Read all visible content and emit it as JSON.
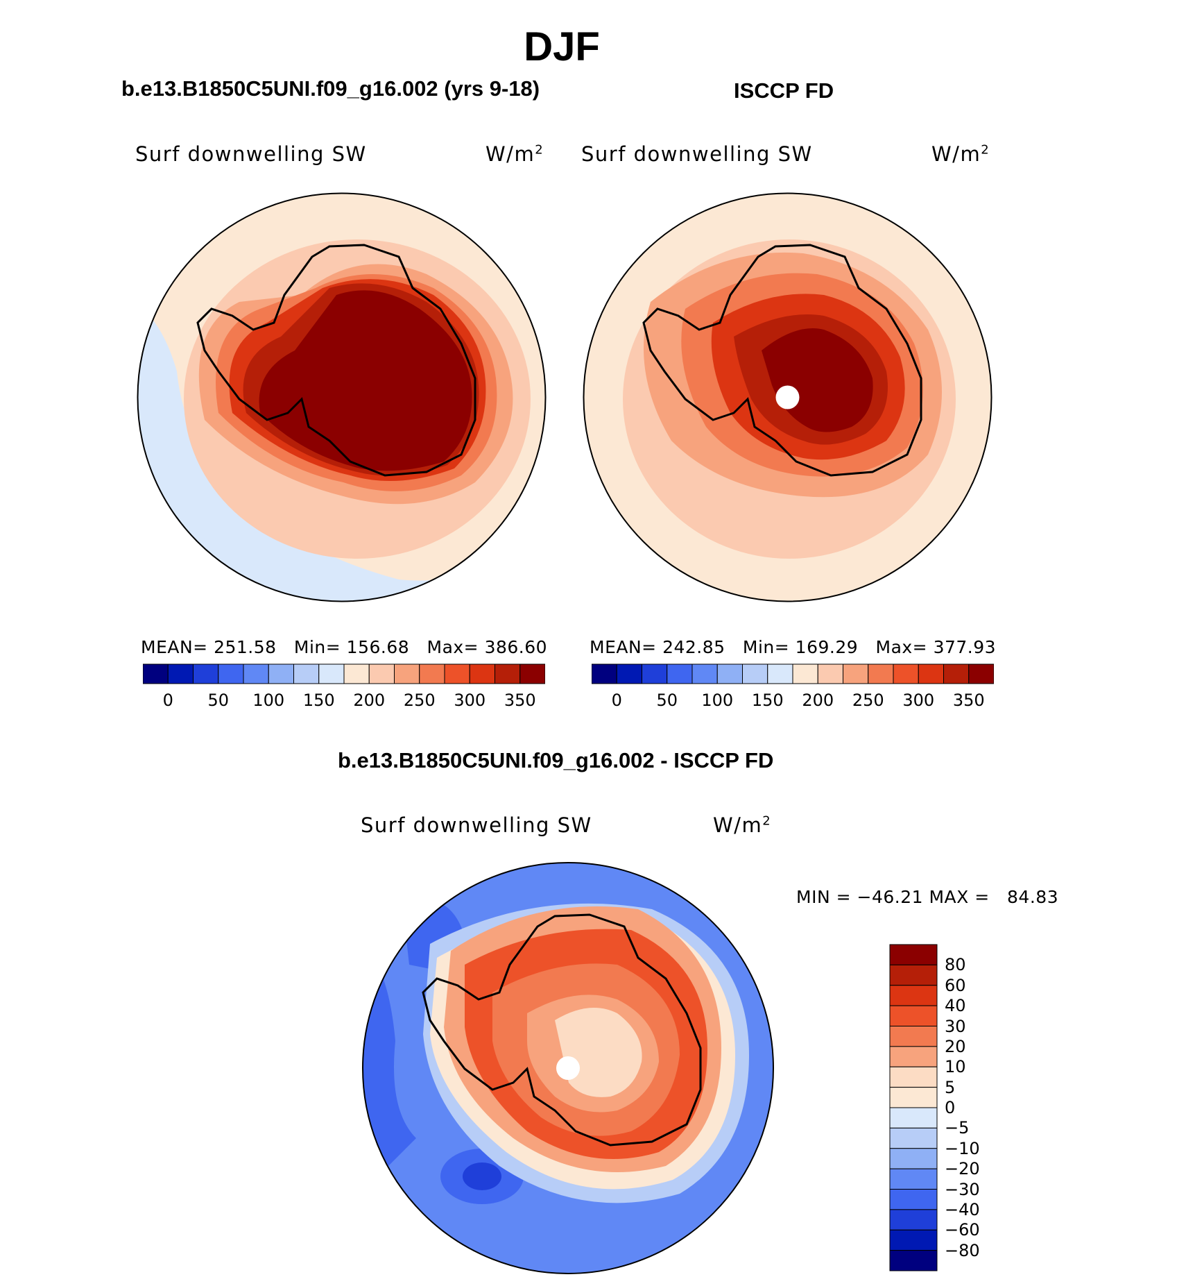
{
  "title": "DJF",
  "panels": [
    {
      "case_title": "b.e13.B1850C5UNI.f09_g16.002 (yrs 9-18)",
      "left_label": "Surf downwelling SW",
      "units_base": "W/m",
      "units_exp": "2",
      "stats": {
        "mean_label": "MEAN=",
        "mean": "251.58",
        "min_label": "Min=",
        "min": "156.68",
        "max_label": "Max=",
        "max": "386.60"
      }
    },
    {
      "case_title": "ISCCP FD",
      "left_label": "Surf downwelling SW",
      "units_base": "W/m",
      "units_exp": "2",
      "stats": {
        "mean_label": "MEAN=",
        "mean": "242.85",
        "min_label": "Min=",
        "min": "169.29",
        "max_label": "Max=",
        "max": "377.93"
      }
    }
  ],
  "abs_colorbar": {
    "colors": [
      "#00007f",
      "#0019b3",
      "#1f3fd9",
      "#3f66f0",
      "#6088f5",
      "#8fb0f5",
      "#b7cdf7",
      "#d9e8fb",
      "#fce8d4",
      "#fbcab0",
      "#f7a37d",
      "#f27a50",
      "#ed5229",
      "#dc3512",
      "#b51f08",
      "#8b0000"
    ],
    "ticks": [
      "0",
      "50",
      "100",
      "150",
      "200",
      "250",
      "300",
      "350"
    ]
  },
  "diff_panel": {
    "case_title": "b.e13.B1850C5UNI.f09_g16.002 - ISCCP FD",
    "left_label": "Surf downwelling SW",
    "units_base": "W/m",
    "units_exp": "2",
    "stats": {
      "min_label": "MIN =",
      "min": "−46.21",
      "max_label": "MAX =",
      "max": "84.83"
    },
    "colorbar": {
      "colors_top_to_bottom": [
        "#8b0000",
        "#b51f08",
        "#dc3512",
        "#ed5229",
        "#f27a50",
        "#f7a37d",
        "#fcdcc4",
        "#fce8d4",
        "#d9e8fb",
        "#b7cdf7",
        "#8fb0f5",
        "#6088f5",
        "#3f66f0",
        "#1f3fd9",
        "#0019b3",
        "#00007f"
      ],
      "labels": [
        "80",
        "60",
        "40",
        "30",
        "20",
        "10",
        "5",
        "0",
        "−5",
        "−10",
        "−20",
        "−30",
        "−40",
        "−60",
        "−80"
      ]
    }
  },
  "map_colors": {
    "land_outline": "#000000",
    "pole_hole": "#ffffff"
  }
}
